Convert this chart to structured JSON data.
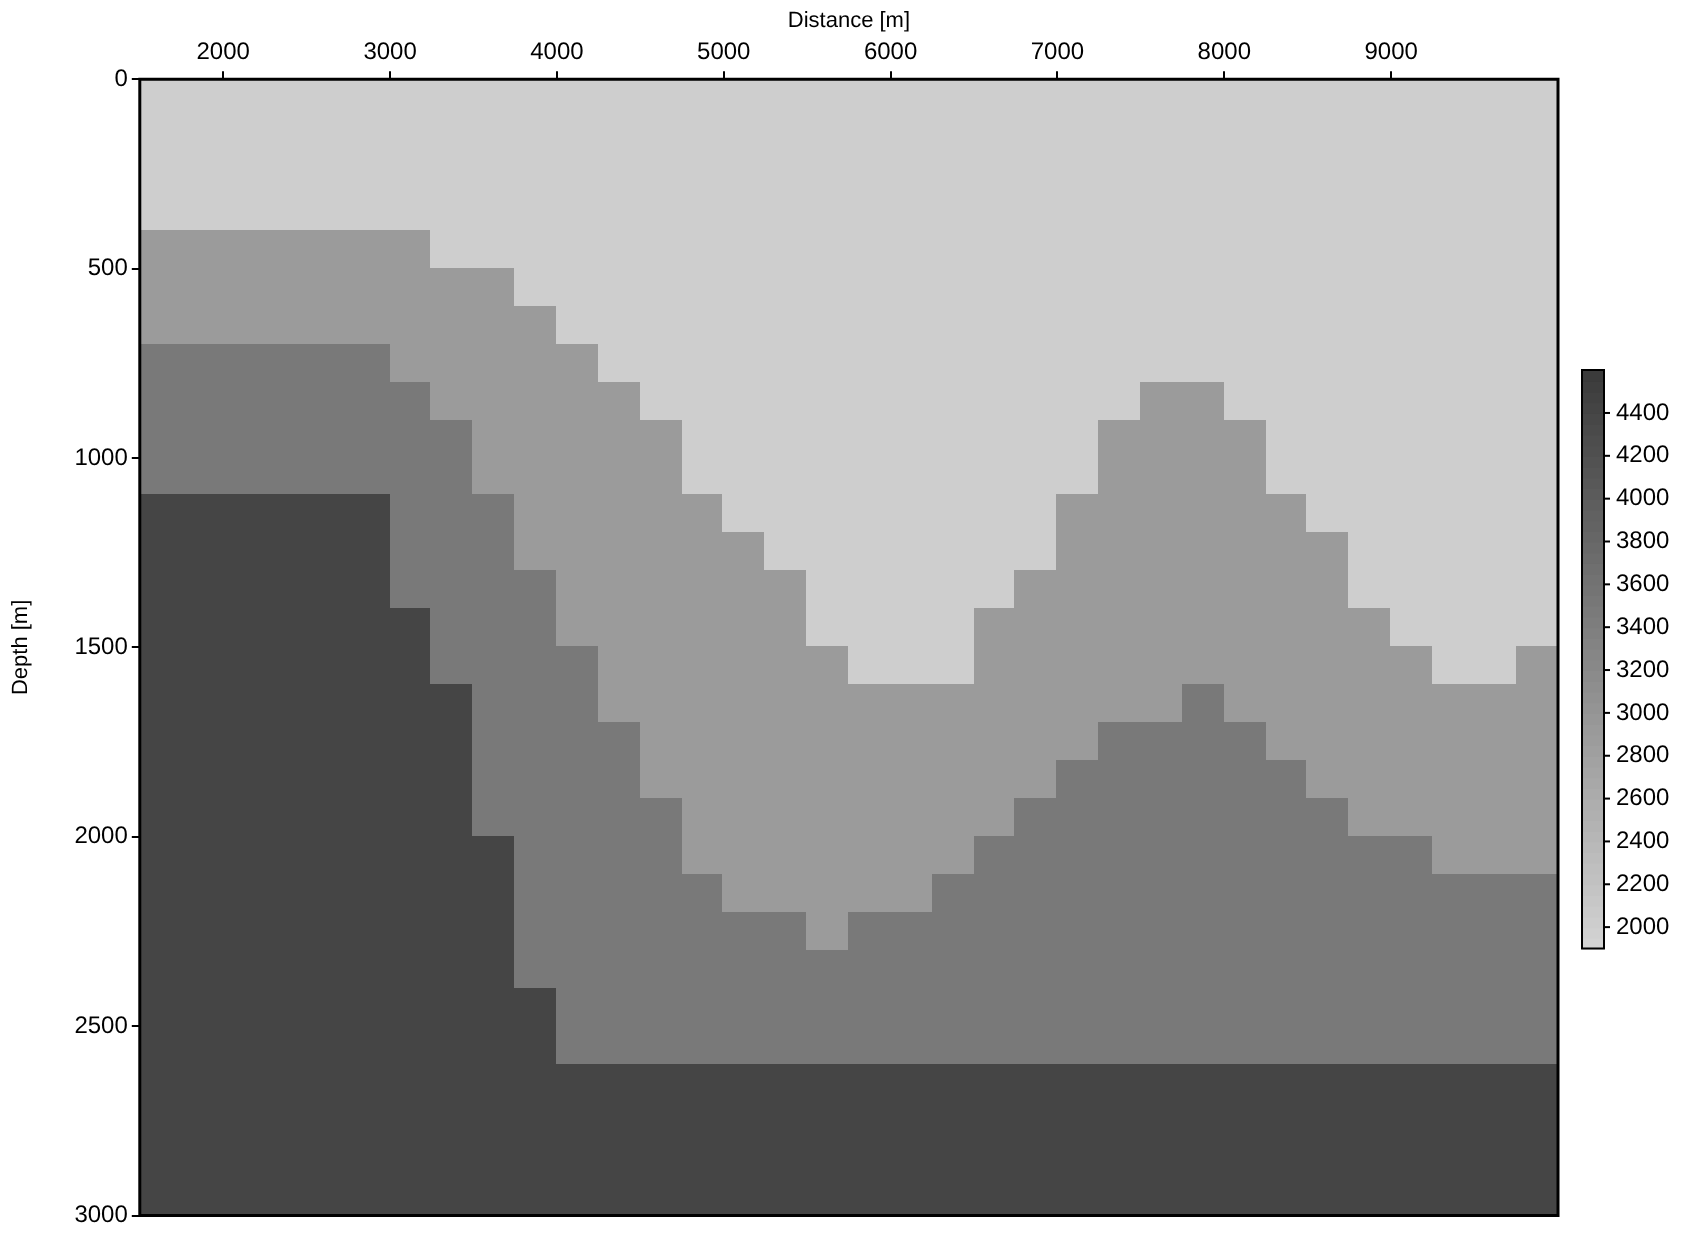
{
  "chart_data": {
    "type": "heatmap",
    "xlabel": "Distance [m]",
    "ylabel": "Depth [m]",
    "x": [
      1625,
      1875,
      2125,
      2375,
      2625,
      2875,
      3125,
      3375,
      3625,
      3875,
      4125,
      4375,
      4625,
      4875,
      5125,
      5375,
      5625,
      5875,
      6125,
      6375,
      6625,
      6875,
      7125,
      7375,
      7625,
      7875,
      8125,
      8375,
      8625,
      8875,
      9125,
      9375,
      9625,
      9875
    ],
    "y": [
      50,
      150,
      250,
      350,
      450,
      550,
      650,
      750,
      850,
      950,
      1050,
      1150,
      1250,
      1350,
      1450,
      1550,
      1650,
      1750,
      1850,
      1950,
      2050,
      2150,
      2250,
      2350,
      2450,
      2550,
      2650,
      2750,
      2850,
      2950
    ],
    "xlim": [
      1500,
      10000
    ],
    "ylim": [
      3000,
      0
    ],
    "xticks": [
      2000,
      3000,
      4000,
      5000,
      6000,
      7000,
      8000,
      9000
    ],
    "yticks": [
      0,
      500,
      1000,
      1500,
      2000,
      2500,
      3000
    ],
    "clim": [
      1900,
      4600
    ],
    "cticks": [
      2000,
      2200,
      2400,
      2600,
      2800,
      3000,
      3200,
      3400,
      3600,
      3800,
      4000,
      4200,
      4400
    ],
    "cells": [
      [
        2000,
        2000,
        2000,
        2000,
        2000,
        2000,
        2000,
        2000,
        2000,
        2000,
        2000,
        2000,
        2000,
        2000,
        2000,
        2000,
        2000,
        2000,
        2000,
        2000,
        2000,
        2000,
        2000,
        2000,
        2000,
        2000,
        2000,
        2000,
        2000,
        2000,
        2000,
        2000,
        2000,
        2000
      ],
      [
        2000,
        2000,
        2000,
        2000,
        2000,
        2000,
        2000,
        2000,
        2000,
        2000,
        2000,
        2000,
        2000,
        2000,
        2000,
        2000,
        2000,
        2000,
        2000,
        2000,
        2000,
        2000,
        2000,
        2000,
        2000,
        2000,
        2000,
        2000,
        2000,
        2000,
        2000,
        2000,
        2000,
        2000
      ],
      [
        2000,
        2000,
        2000,
        2000,
        2000,
        2000,
        2000,
        2000,
        2000,
        2000,
        2000,
        2000,
        2000,
        2000,
        2000,
        2000,
        2000,
        2000,
        2000,
        2000,
        2000,
        2000,
        2000,
        2000,
        2000,
        2000,
        2000,
        2000,
        2000,
        2000,
        2000,
        2000,
        2000,
        2000
      ],
      [
        2000,
        2000,
        2000,
        2000,
        2000,
        2000,
        2000,
        2000,
        2000,
        2000,
        2000,
        2000,
        2000,
        2000,
        2000,
        2000,
        2000,
        2000,
        2000,
        2000,
        2000,
        2000,
        2000,
        2000,
        2000,
        2000,
        2000,
        2000,
        2000,
        2000,
        2000,
        2000,
        2000,
        2000
      ],
      [
        2900,
        2900,
        2900,
        2900,
        2900,
        2900,
        2900,
        2000,
        2000,
        2000,
        2000,
        2000,
        2000,
        2000,
        2000,
        2000,
        2000,
        2000,
        2000,
        2000,
        2000,
        2000,
        2000,
        2000,
        2000,
        2000,
        2000,
        2000,
        2000,
        2000,
        2000,
        2000,
        2000,
        2000
      ],
      [
        2900,
        2900,
        2900,
        2900,
        2900,
        2900,
        2900,
        2900,
        2900,
        2000,
        2000,
        2000,
        2000,
        2000,
        2000,
        2000,
        2000,
        2000,
        2000,
        2000,
        2000,
        2000,
        2000,
        2000,
        2000,
        2000,
        2000,
        2000,
        2000,
        2000,
        2000,
        2000,
        2000,
        2000
      ],
      [
        2900,
        2900,
        2900,
        2900,
        2900,
        2900,
        2900,
        2900,
        2900,
        2900,
        2000,
        2000,
        2000,
        2000,
        2000,
        2000,
        2000,
        2000,
        2000,
        2000,
        2000,
        2000,
        2000,
        2000,
        2000,
        2000,
        2000,
        2000,
        2000,
        2000,
        2000,
        2000,
        2000,
        2000
      ],
      [
        3500,
        3500,
        3500,
        3500,
        3500,
        3500,
        2900,
        2900,
        2900,
        2900,
        2900,
        2000,
        2000,
        2000,
        2000,
        2000,
        2000,
        2000,
        2000,
        2000,
        2000,
        2000,
        2000,
        2000,
        2000,
        2000,
        2000,
        2000,
        2000,
        2000,
        2000,
        2000,
        2000,
        2000
      ],
      [
        3500,
        3500,
        3500,
        3500,
        3500,
        3500,
        3500,
        2900,
        2900,
        2900,
        2900,
        2900,
        2000,
        2000,
        2000,
        2000,
        2000,
        2000,
        2000,
        2000,
        2000,
        2000,
        2000,
        2000,
        2900,
        2900,
        2000,
        2000,
        2000,
        2000,
        2000,
        2000,
        2000,
        2000
      ],
      [
        3500,
        3500,
        3500,
        3500,
        3500,
        3500,
        3500,
        3500,
        2900,
        2900,
        2900,
        2900,
        2900,
        2000,
        2000,
        2000,
        2000,
        2000,
        2000,
        2000,
        2000,
        2000,
        2000,
        2900,
        2900,
        2900,
        2900,
        2000,
        2000,
        2000,
        2000,
        2000,
        2000,
        2000
      ],
      [
        3500,
        3500,
        3500,
        3500,
        3500,
        3500,
        3500,
        3500,
        2900,
        2900,
        2900,
        2900,
        2900,
        2000,
        2000,
        2000,
        2000,
        2000,
        2000,
        2000,
        2000,
        2000,
        2000,
        2900,
        2900,
        2900,
        2900,
        2000,
        2000,
        2000,
        2000,
        2000,
        2000,
        2000
      ],
      [
        4400,
        4400,
        4400,
        4400,
        4400,
        4400,
        3500,
        3500,
        3500,
        2900,
        2900,
        2900,
        2900,
        2900,
        2000,
        2000,
        2000,
        2000,
        2000,
        2000,
        2000,
        2000,
        2900,
        2900,
        2900,
        2900,
        2900,
        2900,
        2000,
        2000,
        2000,
        2000,
        2000,
        2000
      ],
      [
        4400,
        4400,
        4400,
        4400,
        4400,
        4400,
        3500,
        3500,
        3500,
        2900,
        2900,
        2900,
        2900,
        2900,
        2900,
        2000,
        2000,
        2000,
        2000,
        2000,
        2000,
        2000,
        2900,
        2900,
        2900,
        2900,
        2900,
        2900,
        2900,
        2000,
        2000,
        2000,
        2000,
        2000
      ],
      [
        4400,
        4400,
        4400,
        4400,
        4400,
        4400,
        3500,
        3500,
        3500,
        3500,
        2900,
        2900,
        2900,
        2900,
        2900,
        2900,
        2000,
        2000,
        2000,
        2000,
        2000,
        2900,
        2900,
        2900,
        2900,
        2900,
        2900,
        2900,
        2900,
        2000,
        2000,
        2000,
        2000,
        2000
      ],
      [
        4400,
        4400,
        4400,
        4400,
        4400,
        4400,
        4400,
        3500,
        3500,
        3500,
        2900,
        2900,
        2900,
        2900,
        2900,
        2900,
        2000,
        2000,
        2000,
        2000,
        2900,
        2900,
        2900,
        2900,
        2900,
        2900,
        2900,
        2900,
        2900,
        2900,
        2000,
        2000,
        2000,
        2000
      ],
      [
        4400,
        4400,
        4400,
        4400,
        4400,
        4400,
        4400,
        3500,
        3500,
        3500,
        3500,
        2900,
        2900,
        2900,
        2900,
        2900,
        2900,
        2000,
        2000,
        2000,
        2900,
        2900,
        2900,
        2900,
        2900,
        2900,
        2900,
        2900,
        2900,
        2900,
        2900,
        2000,
        2000,
        2900
      ],
      [
        4400,
        4400,
        4400,
        4400,
        4400,
        4400,
        4400,
        4400,
        3500,
        3500,
        3500,
        2900,
        2900,
        2900,
        2900,
        2900,
        2900,
        2900,
        2900,
        2900,
        2900,
        2900,
        2900,
        2900,
        2900,
        3500,
        2900,
        2900,
        2900,
        2900,
        2900,
        2900,
        2900,
        2900
      ],
      [
        4400,
        4400,
        4400,
        4400,
        4400,
        4400,
        4400,
        4400,
        3500,
        3500,
        3500,
        3500,
        2900,
        2900,
        2900,
        2900,
        2900,
        2900,
        2900,
        2900,
        2900,
        2900,
        2900,
        3500,
        3500,
        3500,
        3500,
        2900,
        2900,
        2900,
        2900,
        2900,
        2900,
        2900
      ],
      [
        4400,
        4400,
        4400,
        4400,
        4400,
        4400,
        4400,
        4400,
        3500,
        3500,
        3500,
        3500,
        2900,
        2900,
        2900,
        2900,
        2900,
        2900,
        2900,
        2900,
        2900,
        2900,
        3500,
        3500,
        3500,
        3500,
        3500,
        3500,
        2900,
        2900,
        2900,
        2900,
        2900,
        2900
      ],
      [
        4400,
        4400,
        4400,
        4400,
        4400,
        4400,
        4400,
        4400,
        3500,
        3500,
        3500,
        3500,
        3500,
        2900,
        2900,
        2900,
        2900,
        2900,
        2900,
        2900,
        2900,
        3500,
        3500,
        3500,
        3500,
        3500,
        3500,
        3500,
        3500,
        2900,
        2900,
        2900,
        2900,
        2900
      ],
      [
        4400,
        4400,
        4400,
        4400,
        4400,
        4400,
        4400,
        4400,
        4400,
        3500,
        3500,
        3500,
        3500,
        2900,
        2900,
        2900,
        2900,
        2900,
        2900,
        2900,
        3500,
        3500,
        3500,
        3500,
        3500,
        3500,
        3500,
        3500,
        3500,
        3500,
        3500,
        2900,
        2900,
        2900
      ],
      [
        4400,
        4400,
        4400,
        4400,
        4400,
        4400,
        4400,
        4400,
        4400,
        3500,
        3500,
        3500,
        3500,
        3500,
        2900,
        2900,
        2900,
        2900,
        2900,
        3500,
        3500,
        3500,
        3500,
        3500,
        3500,
        3500,
        3500,
        3500,
        3500,
        3500,
        3500,
        3500,
        3500,
        3500
      ],
      [
        4400,
        4400,
        4400,
        4400,
        4400,
        4400,
        4400,
        4400,
        4400,
        3500,
        3500,
        3500,
        3500,
        3500,
        3500,
        3500,
        2900,
        3500,
        3500,
        3500,
        3500,
        3500,
        3500,
        3500,
        3500,
        3500,
        3500,
        3500,
        3500,
        3500,
        3500,
        3500,
        3500,
        3500
      ],
      [
        4400,
        4400,
        4400,
        4400,
        4400,
        4400,
        4400,
        4400,
        4400,
        3500,
        3500,
        3500,
        3500,
        3500,
        3500,
        3500,
        3500,
        3500,
        3500,
        3500,
        3500,
        3500,
        3500,
        3500,
        3500,
        3500,
        3500,
        3500,
        3500,
        3500,
        3500,
        3500,
        3500,
        3500
      ],
      [
        4400,
        4400,
        4400,
        4400,
        4400,
        4400,
        4400,
        4400,
        4400,
        4400,
        3500,
        3500,
        3500,
        3500,
        3500,
        3500,
        3500,
        3500,
        3500,
        3500,
        3500,
        3500,
        3500,
        3500,
        3500,
        3500,
        3500,
        3500,
        3500,
        3500,
        3500,
        3500,
        3500,
        3500
      ],
      [
        4400,
        4400,
        4400,
        4400,
        4400,
        4400,
        4400,
        4400,
        4400,
        4400,
        3500,
        3500,
        3500,
        3500,
        3500,
        3500,
        3500,
        3500,
        3500,
        3500,
        3500,
        3500,
        3500,
        3500,
        3500,
        3500,
        3500,
        3500,
        3500,
        3500,
        3500,
        3500,
        3500,
        3500
      ],
      [
        4400,
        4400,
        4400,
        4400,
        4400,
        4400,
        4400,
        4400,
        4400,
        4400,
        4400,
        4400,
        4400,
        4400,
        4400,
        4400,
        4400,
        4400,
        4400,
        4400,
        4400,
        4400,
        4400,
        4400,
        4400,
        4400,
        4400,
        4400,
        4400,
        4400,
        4400,
        4400,
        4400,
        4400
      ],
      [
        4400,
        4400,
        4400,
        4400,
        4400,
        4400,
        4400,
        4400,
        4400,
        4400,
        4400,
        4400,
        4400,
        4400,
        4400,
        4400,
        4400,
        4400,
        4400,
        4400,
        4400,
        4400,
        4400,
        4400,
        4400,
        4400,
        4400,
        4400,
        4400,
        4400,
        4400,
        4400,
        4400,
        4400
      ],
      [
        4400,
        4400,
        4400,
        4400,
        4400,
        4400,
        4400,
        4400,
        4400,
        4400,
        4400,
        4400,
        4400,
        4400,
        4400,
        4400,
        4400,
        4400,
        4400,
        4400,
        4400,
        4400,
        4400,
        4400,
        4400,
        4400,
        4400,
        4400,
        4400,
        4400,
        4400,
        4400,
        4400,
        4400
      ],
      [
        4400,
        4400,
        4400,
        4400,
        4400,
        4400,
        4400,
        4400,
        4400,
        4400,
        4400,
        4400,
        4400,
        4400,
        4400,
        4400,
        4400,
        4400,
        4400,
        4400,
        4400,
        4400,
        4400,
        4400,
        4400,
        4400,
        4400,
        4400,
        4400,
        4400,
        4400,
        4400,
        4400,
        4400
      ]
    ]
  }
}
